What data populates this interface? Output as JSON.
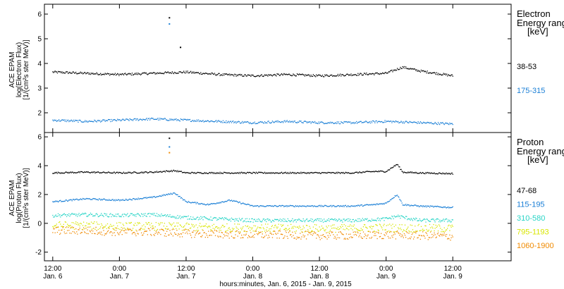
{
  "chart_data": [
    {
      "type": "scatter",
      "panel": "electron",
      "ylabel_lines": [
        "ACE EPAM",
        "log(Electron Flux)",
        "[1/(cm²s ster MeV)]"
      ],
      "legend_title_lines": [
        "Electron",
        "Energy range",
        "[keV]"
      ],
      "ylim": [
        1.2,
        6.4
      ],
      "yticks": [
        2,
        3,
        4,
        5,
        6
      ],
      "series": [
        {
          "name": "38-53",
          "color": "#000000",
          "base": 3.6,
          "x": [
            0,
            6,
            12,
            18,
            24,
            30,
            36,
            42,
            48,
            54,
            60,
            63,
            66,
            72
          ],
          "y": [
            3.65,
            3.6,
            3.55,
            3.6,
            3.65,
            3.55,
            3.5,
            3.55,
            3.5,
            3.55,
            3.6,
            3.85,
            3.7,
            3.5
          ]
        },
        {
          "name": "175-315",
          "color": "#1a7fd6",
          "base": 1.65,
          "x": [
            0,
            6,
            12,
            18,
            24,
            30,
            36,
            42,
            48,
            54,
            60,
            66,
            72
          ],
          "y": [
            1.7,
            1.65,
            1.7,
            1.75,
            1.7,
            1.65,
            1.6,
            1.65,
            1.6,
            1.6,
            1.65,
            1.6,
            1.55
          ]
        }
      ],
      "spikes": [
        {
          "x": 21.0,
          "y": 5.85,
          "color": "#000000"
        },
        {
          "x": 21.0,
          "y": 5.6,
          "color": "#1a7fd6"
        },
        {
          "x": 23.0,
          "y": 4.65,
          "color": "#000000"
        }
      ]
    },
    {
      "type": "scatter",
      "panel": "proton",
      "ylabel_lines": [
        "ACE EPAM",
        "log(Proton Flux)",
        "[1/(cm²s ster MeV)]"
      ],
      "legend_title_lines": [
        "Proton",
        "Energy range",
        "[keV]"
      ],
      "ylim": [
        -2.6,
        6.3
      ],
      "yticks": [
        -2,
        0,
        2,
        4,
        6
      ],
      "series": [
        {
          "name": "47-68",
          "color": "#000000",
          "x": [
            0,
            6,
            12,
            18,
            22,
            24,
            30,
            36,
            42,
            48,
            54,
            58,
            60,
            62,
            63,
            66,
            72
          ],
          "y": [
            3.5,
            3.55,
            3.5,
            3.55,
            3.65,
            3.5,
            3.5,
            3.5,
            3.5,
            3.5,
            3.5,
            3.6,
            3.6,
            4.1,
            3.55,
            3.5,
            3.45
          ]
        },
        {
          "name": "115-195",
          "color": "#1a7fd6",
          "x": [
            0,
            6,
            12,
            18,
            22,
            24,
            28,
            32,
            36,
            42,
            48,
            54,
            58,
            60,
            62,
            63,
            66,
            72
          ],
          "y": [
            1.5,
            1.7,
            1.6,
            1.8,
            2.1,
            1.5,
            1.3,
            1.6,
            1.2,
            1.2,
            1.2,
            1.2,
            1.3,
            1.4,
            2.0,
            1.3,
            1.2,
            1.1
          ]
        },
        {
          "name": "310-580",
          "color": "#27d4c6",
          "x": [
            0,
            6,
            12,
            18,
            24,
            30,
            36,
            42,
            48,
            54,
            60,
            62,
            66,
            72
          ],
          "y": [
            0.55,
            0.6,
            0.55,
            0.6,
            0.4,
            0.3,
            0.2,
            0.2,
            0.2,
            0.2,
            0.3,
            0.5,
            0.2,
            0.2
          ]
        },
        {
          "name": "795-1193",
          "color": "#d8e600",
          "x": [
            0,
            6,
            12,
            18,
            24,
            30,
            36,
            42,
            48,
            54,
            60,
            66,
            72
          ],
          "y": [
            -0.15,
            -0.15,
            -0.2,
            -0.2,
            -0.25,
            -0.3,
            -0.3,
            -0.35,
            -0.35,
            -0.35,
            -0.3,
            -0.35,
            -0.35
          ]
        },
        {
          "name": "1060-1900",
          "color": "#f08a00",
          "x": [
            0,
            6,
            12,
            18,
            24,
            30,
            36,
            42,
            48,
            54,
            60,
            66,
            72
          ],
          "y": [
            -0.5,
            -0.5,
            -0.6,
            -0.6,
            -0.7,
            -0.75,
            -0.8,
            -0.8,
            -0.85,
            -0.85,
            -0.8,
            -0.85,
            -0.9
          ]
        }
      ],
      "spikes": [
        {
          "x": 21.0,
          "y": 5.9,
          "color": "#000000"
        },
        {
          "x": 21.0,
          "y": 5.3,
          "color": "#1a7fd6"
        },
        {
          "x": 21.0,
          "y": 4.9,
          "color": "#f08a00"
        }
      ]
    }
  ],
  "x_axis": {
    "xlim": [
      -1.5,
      82.5
    ],
    "data_end": 72,
    "ticks": [
      {
        "x": 0,
        "line1": "12:00",
        "line2": "Jan. 6"
      },
      {
        "x": 12,
        "line1": "0:00",
        "line2": "Jan. 7"
      },
      {
        "x": 24,
        "line1": "12:00",
        "line2": "Jan. 7"
      },
      {
        "x": 36,
        "line1": "0:00",
        "line2": "Jan. 8"
      },
      {
        "x": 48,
        "line1": "12:00",
        "line2": "Jan. 8"
      },
      {
        "x": 60,
        "line1": "0:00",
        "line2": "Jan. 9"
      },
      {
        "x": 72,
        "line1": "12:00",
        "line2": "Jan. 9"
      }
    ],
    "xlabel": "hours:minutes, Jan.  6, 2015 - Jan.  9, 2015"
  }
}
